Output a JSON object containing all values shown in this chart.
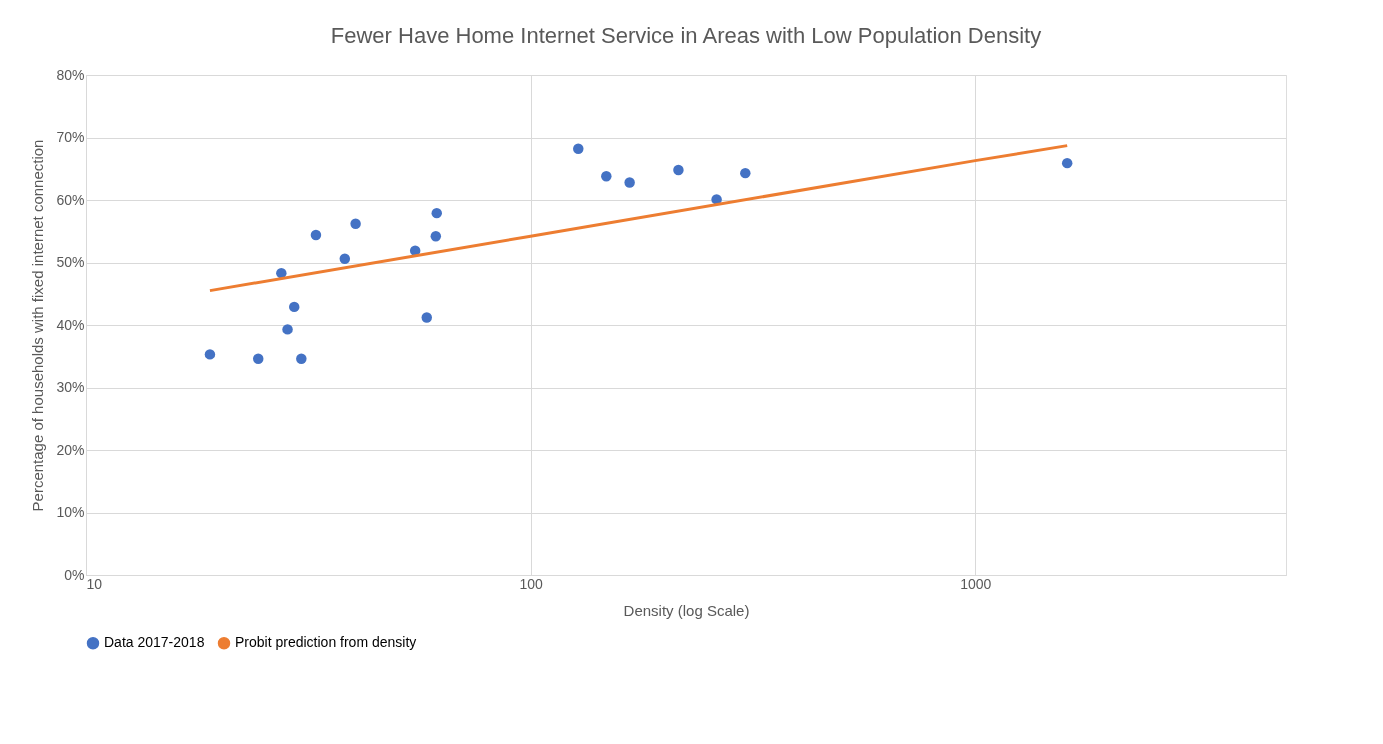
{
  "chart_data": {
    "type": "scatter",
    "title": "Fewer Have Home Internet Service in Areas with Low Population Density",
    "xlabel": "Density (log Scale)",
    "ylabel": "Percentage of households with fixed internet connection",
    "log": "x",
    "xlim": [
      10,
      5000
    ],
    "xticks": [
      10,
      100,
      1000
    ],
    "ylim": [
      0,
      80
    ],
    "yticks": [
      {
        "value": 0,
        "label": "0%"
      },
      {
        "value": 10,
        "label": "10%"
      },
      {
        "value": 20,
        "label": "20%"
      },
      {
        "value": 30,
        "label": "30%"
      },
      {
        "value": 40,
        "label": "40%"
      },
      {
        "value": 50,
        "label": "50%"
      },
      {
        "value": 60,
        "label": "60%"
      },
      {
        "value": 70,
        "label": "70%"
      },
      {
        "value": 80,
        "label": "80%"
      }
    ],
    "grid": true,
    "legend": "bottom",
    "series": [
      {
        "name": "Data 2017-2018",
        "marker": "circle",
        "color": "#4472c4",
        "x": [
          19,
          24.4,
          27.5,
          28.4,
          29.4,
          30.5,
          32.9,
          38.2,
          40.4,
          55,
          58.4,
          61.2,
          61.5,
          128,
          148,
          167,
          215,
          262,
          304,
          1610
        ],
        "values": [
          35.3,
          34.6,
          48.3,
          39.3,
          42.9,
          34.6,
          54.4,
          50.6,
          56.2,
          51.9,
          41.2,
          54.2,
          57.9,
          68.2,
          63.8,
          62.8,
          64.8,
          60.1,
          64.3,
          65.9
        ]
      },
      {
        "name": "Probit prediction from density",
        "type": "line",
        "marker": "none",
        "color": "#ed7d31",
        "x": [
          19,
          100,
          1000,
          1610
        ],
        "values": [
          45.5,
          54.2,
          66.3,
          68.7
        ]
      }
    ]
  }
}
